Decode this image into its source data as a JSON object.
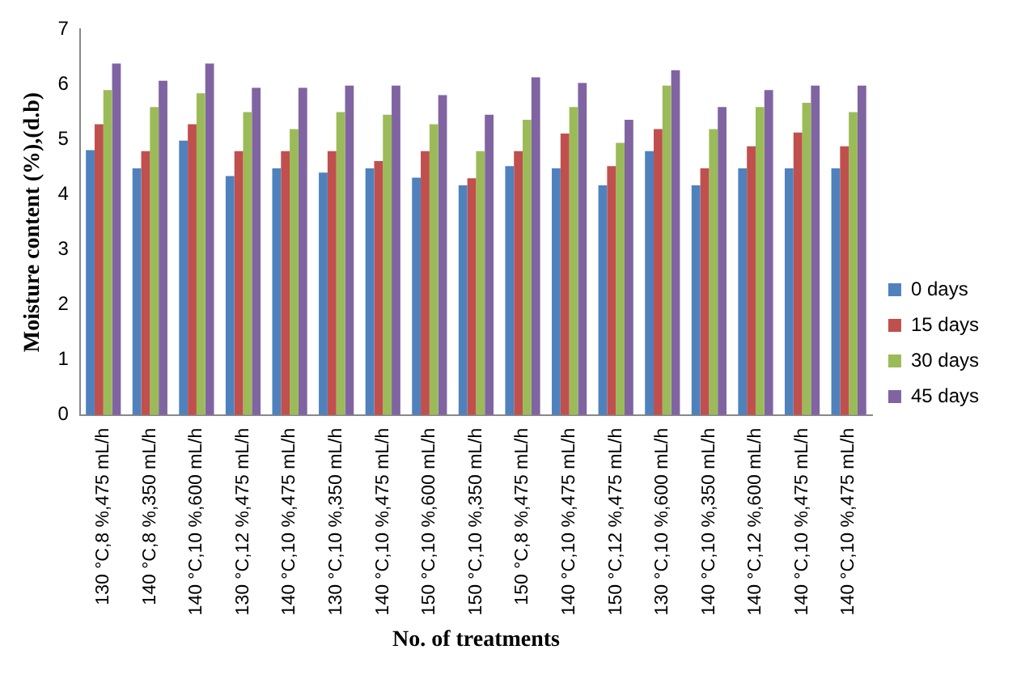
{
  "chart_data": {
    "type": "bar",
    "xlabel": "No. of treatments",
    "ylabel": "Moisture content (%),(d.b)",
    "categories": [
      "130 °C,8 %,475 mL/h",
      "140 °C,8 %,350 mL/h",
      "140 °C,10 %,600 mL/h",
      "130 °C,12 %,475 mL/h",
      "140 °C,10 %,475 mL/h",
      "130 °C,10 %,350 mL/h",
      "140 °C,10 %,475 mL/h",
      "150 °C,10 %,600 mL/h",
      "150 °C,10 %,350 mL/h",
      "150 °C,8 %,475 mL/h",
      "140 °C,10 %,475 mL/h",
      "150 °C,12 %,475 mL/h",
      "130 °C,10 %,600 mL/h",
      "140 °C,10 %,350 mL/h",
      "140 °C,12 %,600 mL/h",
      "140 °C,10 %,475 mL/h",
      "140 °C,10 %,475 mL/h"
    ],
    "series": [
      {
        "name": "0 days",
        "color": "#4f81bd",
        "values": [
          4.81,
          4.48,
          4.98,
          4.34,
          4.48,
          4.4,
          4.48,
          4.31,
          4.17,
          4.52,
          4.48,
          4.17,
          4.79,
          4.17,
          4.48,
          4.48,
          4.48
        ]
      },
      {
        "name": "15 days",
        "color": "#c0504d",
        "values": [
          5.28,
          4.79,
          5.28,
          4.79,
          4.79,
          4.79,
          4.61,
          4.79,
          4.3,
          4.79,
          5.11,
          4.52,
          5.19,
          4.48,
          4.88,
          5.13,
          4.88
        ]
      },
      {
        "name": "30 days",
        "color": "#9bbb59",
        "values": [
          5.9,
          5.59,
          5.84,
          5.5,
          5.19,
          5.5,
          5.45,
          5.28,
          4.79,
          5.36,
          5.59,
          4.94,
          5.98,
          5.19,
          5.59,
          5.67,
          5.5
        ]
      },
      {
        "name": "45 days",
        "color": "#8064a2",
        "values": [
          6.38,
          6.07,
          6.38,
          5.94,
          5.94,
          5.98,
          5.98,
          5.81,
          5.45,
          6.13,
          6.03,
          5.36,
          6.26,
          5.59,
          5.9,
          5.98,
          5.98
        ]
      }
    ],
    "ylim": [
      0,
      7
    ],
    "yticks": [
      0,
      1,
      2,
      3,
      4,
      5,
      6,
      7
    ],
    "grid": false,
    "legend": "right"
  }
}
